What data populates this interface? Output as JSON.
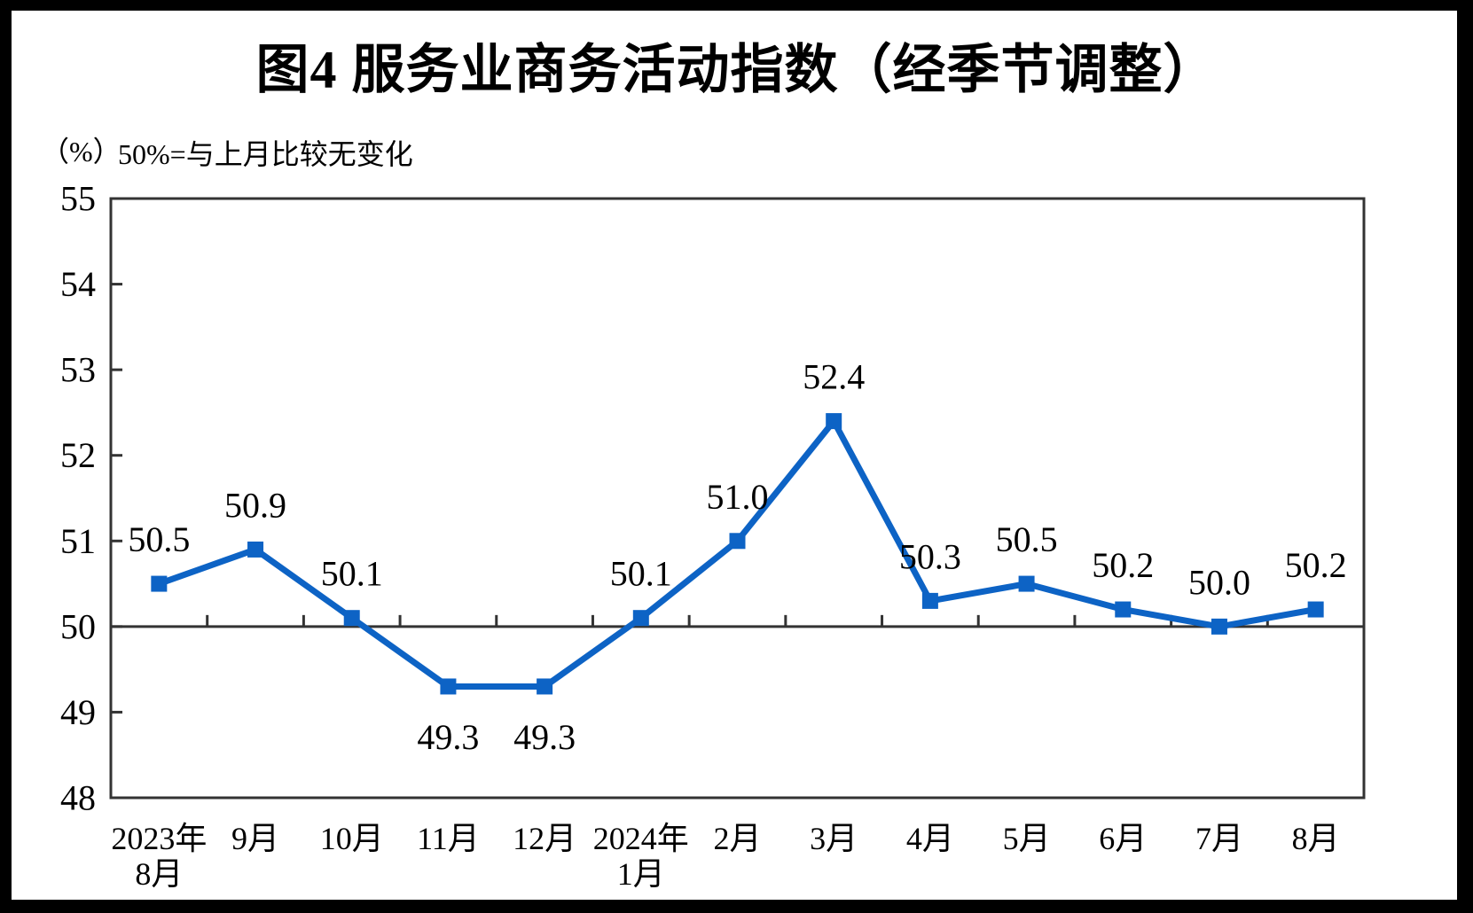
{
  "title": "图4  服务业商务活动指数（经季节调整）",
  "unit_label": "（%）",
  "subtitle": "50%=与上月比较无变化",
  "colors": {
    "series": "#0D63C5",
    "axis": "#333333",
    "text": "#000000",
    "frame": "#000000",
    "background": "#ffffff"
  },
  "chart_data": {
    "type": "line",
    "title": "图4  服务业商务活动指数（经季节调整）",
    "categories": [
      [
        "2023年",
        "8月"
      ],
      [
        "9月"
      ],
      [
        "10月"
      ],
      [
        "11月"
      ],
      [
        "12月"
      ],
      [
        "2024年",
        "1月"
      ],
      [
        "2月"
      ],
      [
        "3月"
      ],
      [
        "4月"
      ],
      [
        "5月"
      ],
      [
        "6月"
      ],
      [
        "7月"
      ],
      [
        "8月"
      ]
    ],
    "values": [
      50.5,
      50.9,
      50.1,
      49.3,
      49.3,
      50.1,
      51.0,
      52.4,
      50.3,
      50.5,
      50.2,
      50.0,
      50.2
    ],
    "data_labels": [
      "50.5",
      "50.9",
      "50.1",
      "49.3",
      "49.3",
      "50.1",
      "51.0",
      "52.4",
      "50.3",
      "50.5",
      "50.2",
      "50.0",
      "50.2"
    ],
    "label_position": [
      "above",
      "above",
      "above",
      "below",
      "below",
      "above",
      "above",
      "above",
      "above",
      "above",
      "above",
      "above",
      "above"
    ],
    "xlabel": "",
    "ylabel": "（%）",
    "y_ticks": [
      55,
      54,
      53,
      52,
      51,
      50,
      49,
      48
    ],
    "ylim": [
      48,
      55
    ],
    "reference_line": 50,
    "reference_note": "50%=与上月比较无变化",
    "marker": "square",
    "grid": false,
    "legend": "none",
    "series_name": "服务业商务活动指数"
  }
}
